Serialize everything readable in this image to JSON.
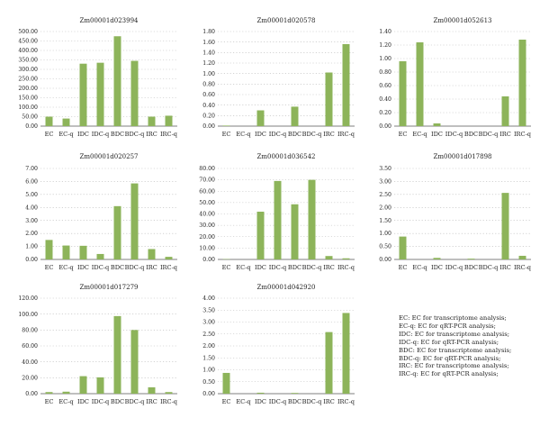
{
  "bar_color": "#8db45a",
  "chart_data": [
    {
      "type": "bar",
      "title": "Zm00001d023994",
      "categories": [
        "EC",
        "EC-q",
        "IDC",
        "IDC-q",
        "BDC",
        "BDC-q",
        "IRC",
        "IRC-q"
      ],
      "values": [
        50,
        40,
        330,
        335,
        475,
        345,
        50,
        55
      ],
      "ylim": [
        0,
        500
      ],
      "yticks": [
        "0.00",
        "50.00",
        "100.00",
        "150.00",
        "200.00",
        "250.00",
        "300.00",
        "350.00",
        "400.00",
        "450.00",
        "500.00"
      ],
      "grid": true
    },
    {
      "type": "bar",
      "title": "Zm00001d020578",
      "categories": [
        "EC",
        "EC-q",
        "IDC",
        "IDC-q",
        "BDC",
        "BDC-q",
        "IRC",
        "IRC-q"
      ],
      "values": [
        0.01,
        0,
        0.3,
        0,
        0.37,
        0,
        1.02,
        1.56
      ],
      "ylim": [
        0,
        1.8
      ],
      "yticks": [
        "0.00",
        "0.20",
        "0.40",
        "0.60",
        "0.80",
        "1.00",
        "1.20",
        "1.40",
        "1.60",
        "1.80"
      ],
      "grid": true
    },
    {
      "type": "bar",
      "title": "Zm00001d052613",
      "categories": [
        "EC",
        "EC-q",
        "IDC",
        "IDC-q",
        "BDC",
        "BDC-q",
        "IRC",
        "IRC-q"
      ],
      "values": [
        0.96,
        1.24,
        0.04,
        0,
        0,
        0,
        0.44,
        1.28
      ],
      "ylim": [
        0,
        1.4
      ],
      "yticks": [
        "0.00",
        "0.20",
        "0.40",
        "0.60",
        "0.80",
        "1.00",
        "1.20",
        "1.40"
      ],
      "grid": true
    },
    {
      "type": "bar",
      "title": "Zm00001d020257",
      "categories": [
        "EC",
        "EC-q",
        "IDC",
        "IDC-q",
        "BDC",
        "BDC-q",
        "IRC",
        "IRC-q"
      ],
      "values": [
        1.5,
        1.07,
        1.05,
        0.42,
        4.1,
        5.85,
        0.8,
        0.2
      ],
      "ylim": [
        0,
        7
      ],
      "yticks": [
        "0.00",
        "1.00",
        "2.00",
        "3.00",
        "4.00",
        "5.00",
        "6.00",
        "7.00"
      ],
      "grid": true
    },
    {
      "type": "bar",
      "title": "Zm00001d036542",
      "categories": [
        "EC",
        "EC-q",
        "IDC",
        "IDC-q",
        "BDC",
        "BDC-q",
        "IRC",
        "IRC-q"
      ],
      "values": [
        0.3,
        0,
        42,
        69,
        48.5,
        70,
        3,
        1
      ],
      "ylim": [
        0,
        80
      ],
      "yticks": [
        "0.00",
        "10.00",
        "20.00",
        "30.00",
        "40.00",
        "50.00",
        "60.00",
        "70.00",
        "80.00"
      ],
      "grid": true
    },
    {
      "type": "bar",
      "title": "Zm00001d017898",
      "categories": [
        "EC",
        "EC-q",
        "IDC",
        "IDC-q",
        "BDC",
        "BDC-q",
        "IRC",
        "IRC-q"
      ],
      "values": [
        0.88,
        0,
        0.06,
        0,
        0.03,
        0,
        2.56,
        0.14
      ],
      "ylim": [
        0,
        3.5
      ],
      "yticks": [
        "0.00",
        "0.50",
        "1.00",
        "1.50",
        "2.00",
        "2.50",
        "3.00",
        "3.50"
      ],
      "grid": true
    },
    {
      "type": "bar",
      "title": "Zm00001d017279",
      "categories": [
        "EC",
        "EC-q",
        "IDC",
        "IDC-q",
        "BDC",
        "BDC-q",
        "IRC",
        "IRC-q"
      ],
      "values": [
        2,
        2.5,
        22,
        20.5,
        97.5,
        80,
        8,
        2
      ],
      "ylim": [
        0,
        120
      ],
      "yticks": [
        "0.00",
        "20.00",
        "40.00",
        "60.00",
        "80.00",
        "100.00",
        "120.00"
      ],
      "grid": true
    },
    {
      "type": "bar",
      "title": "Zm00001d042920",
      "categories": [
        "EC",
        "EC-q",
        "IDC",
        "IDC-q",
        "BDC",
        "BDC-q",
        "IRC",
        "IRC-q"
      ],
      "values": [
        0.87,
        0,
        0.04,
        0,
        0.03,
        0,
        2.58,
        3.38
      ],
      "ylim": [
        0,
        4
      ],
      "yticks": [
        "0.00",
        "0.50",
        "1.00",
        "1.50",
        "2.00",
        "2.50",
        "3.00",
        "3.50",
        "4.00"
      ],
      "grid": true
    }
  ],
  "legend": [
    "EC: EC for transcriptome analysis;",
    "EC-q: EC for qRT-PCR analysis;",
    "IDC: EC for transcriptome analysis;",
    "IDC-q: EC for qRT-PCR analysis;",
    "BDC: EC for transcriptome analysis;",
    "BDC-q: EC for qRT-PCR analysis;",
    "IRC: EC for transcriptome analysis;",
    "IRC-q: EC for qRT-PCR analysis;"
  ]
}
